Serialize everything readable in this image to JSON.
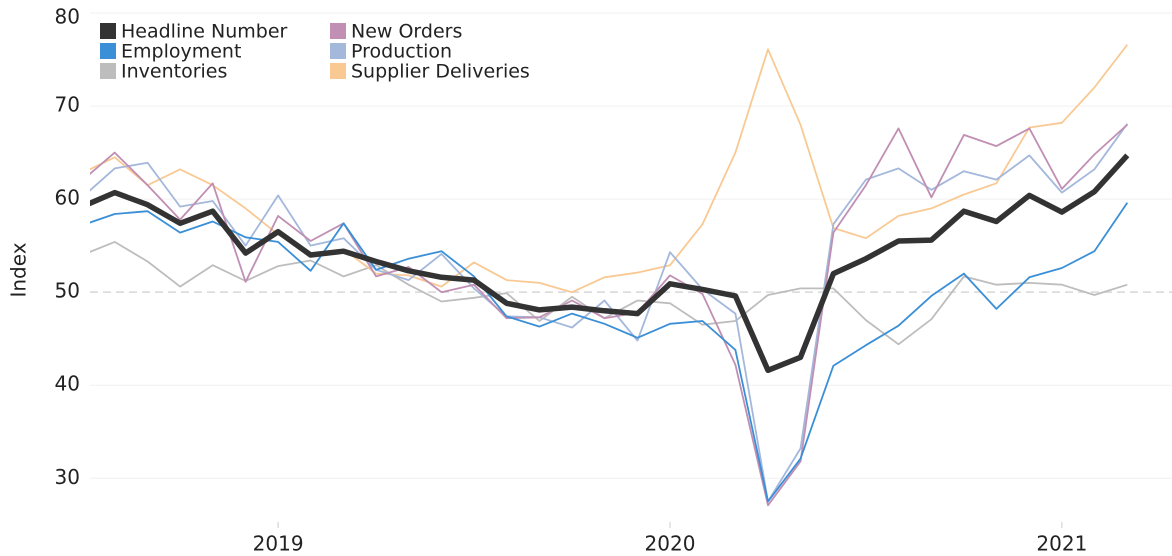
{
  "chart_data": {
    "type": "line",
    "y_label": "Index",
    "x": [
      2018.5,
      2018.583,
      2018.667,
      2018.75,
      2018.833,
      2018.917,
      2019,
      2019.083,
      2019.167,
      2019.25,
      2019.333,
      2019.417,
      2019.5,
      2019.583,
      2019.667,
      2019.75,
      2019.833,
      2019.917,
      2020,
      2020.083,
      2020.167,
      2020.25,
      2020.333,
      2020.417,
      2020.5,
      2020.583,
      2020.667,
      2020.75,
      2020.833,
      2020.917,
      2021,
      2021.083,
      2021.167
    ],
    "xlim": [
      2018.52,
      2021.281
    ],
    "xticks": [
      2019,
      2020,
      2021
    ],
    "ylim": [
      25.3,
      81.4
    ],
    "yticks": [
      30,
      40,
      50,
      60,
      70,
      80
    ],
    "grid": true,
    "reference_line": 50,
    "legend": "upper left",
    "series": [
      {
        "name": "Inventories",
        "color": "#bdbdbd",
        "values": [
          54.0,
          55.4,
          53.3,
          50.6,
          52.9,
          51.2,
          52.8,
          53.4,
          51.7,
          52.9,
          50.8,
          49.0,
          49.4,
          49.9,
          46.9,
          49.5,
          47.2,
          49.1,
          48.8,
          46.5,
          46.9,
          49.7,
          50.4,
          50.4,
          47.0,
          44.4,
          47.1,
          51.7,
          50.8,
          51.0,
          50.8,
          49.7,
          50.8
        ]
      },
      {
        "name": "Supplier Deliveries",
        "color": "#f9c993",
        "values": [
          62.8,
          64.5,
          61.5,
          63.2,
          61.5,
          59.0,
          56.2,
          54.2,
          54.6,
          52.0,
          51.8,
          50.6,
          53.2,
          51.3,
          51.0,
          50.0,
          51.6,
          52.1,
          52.9,
          57.3,
          65.0,
          76.1,
          68.0,
          56.9,
          55.8,
          58.2,
          59.0,
          60.5,
          61.7,
          67.7,
          68.2,
          72.0,
          76.6
        ]
      },
      {
        "name": "Production",
        "color": "#a4b8dc",
        "values": [
          60.2,
          63.3,
          63.9,
          59.2,
          59.8,
          55.0,
          60.4,
          55.0,
          55.8,
          52.4,
          51.3,
          54.1,
          50.4,
          47.4,
          47.3,
          46.2,
          49.1,
          44.8,
          54.3,
          50.3,
          47.7,
          27.5,
          33.2,
          57.3,
          62.1,
          63.3,
          61.0,
          63.0,
          62.1,
          64.7,
          60.7,
          63.2,
          68.1
        ]
      },
      {
        "name": "New Orders",
        "color": "#c08fb3",
        "values": [
          62.0,
          65.0,
          61.5,
          57.8,
          61.7,
          51.1,
          58.2,
          55.5,
          57.4,
          51.7,
          52.7,
          50.0,
          50.8,
          47.2,
          47.3,
          49.1,
          47.2,
          47.8,
          51.8,
          49.8,
          42.2,
          27.1,
          31.8,
          56.4,
          61.5,
          67.6,
          60.2,
          66.9,
          65.7,
          67.6,
          61.1,
          64.8,
          68.0
        ]
      },
      {
        "name": "Employment",
        "color": "#3a8fd6",
        "values": [
          57.2,
          58.4,
          58.7,
          56.4,
          57.6,
          55.9,
          55.4,
          52.3,
          57.4,
          52.4,
          53.6,
          54.4,
          51.7,
          47.4,
          46.3,
          47.7,
          46.6,
          45.1,
          46.6,
          46.9,
          43.8,
          27.5,
          32.1,
          42.1,
          44.3,
          46.4,
          49.6,
          52.0,
          48.2,
          51.6,
          52.6,
          54.4,
          59.6
        ]
      },
      {
        "name": "Headline Number",
        "color": "#333333",
        "values": [
          59.2,
          60.7,
          59.4,
          57.4,
          58.7,
          54.2,
          56.5,
          54.0,
          54.4,
          53.3,
          52.3,
          51.6,
          51.3,
          48.8,
          48.1,
          48.4,
          48.0,
          47.7,
          50.9,
          50.3,
          49.6,
          41.6,
          43.0,
          52.0,
          53.6,
          55.5,
          55.6,
          58.7,
          57.6,
          60.4,
          58.6,
          60.8,
          64.7
        ]
      }
    ],
    "legend_order": [
      5,
      3,
      4,
      2,
      0,
      1
    ]
  }
}
